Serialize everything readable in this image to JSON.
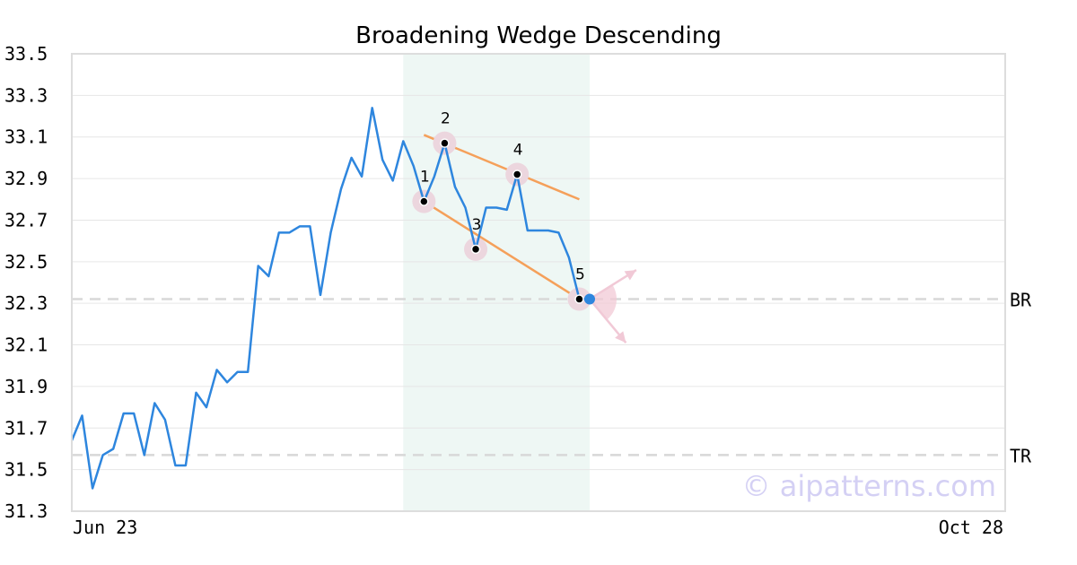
{
  "chart_data": {
    "type": "line",
    "title": "Broadening Wedge Descending",
    "xlabel": "",
    "ylabel": "",
    "ylim": [
      31.3,
      33.5
    ],
    "y_ticks": [
      "31.3",
      "31.5",
      "31.7",
      "31.9",
      "32.1",
      "32.3",
      "32.5",
      "32.7",
      "32.9",
      "33.1",
      "33.3",
      "33.5"
    ],
    "x_tick_labels": [
      "Jun 23",
      "Oct 28"
    ],
    "grid": "horizontal",
    "colors": {
      "price_line": "#2e86de",
      "trendline": "#f5a05a",
      "highlight_band": "#eef7f4",
      "marker_halo": "#ecd6de",
      "reference_line": "#d8d8d8",
      "projection": "#f1c9d6",
      "last_point": "#2e86de"
    },
    "series": [
      {
        "values": [
          31.64,
          31.76,
          31.41,
          31.57,
          31.6,
          31.77,
          31.77,
          31.57,
          31.82,
          31.74,
          31.52,
          31.52,
          31.87,
          31.8,
          31.98,
          31.92,
          31.97,
          31.97,
          32.48,
          32.43,
          32.64,
          32.64,
          32.67,
          32.67,
          32.34,
          32.64,
          32.85,
          33.0,
          32.91,
          33.24,
          32.99,
          32.89,
          33.08,
          32.96,
          32.79,
          32.91,
          33.07,
          32.86,
          32.76,
          32.56,
          32.76,
          32.76,
          32.75,
          32.92,
          32.65,
          32.65,
          32.65,
          32.64,
          32.52,
          32.32,
          32.32
        ]
      }
    ],
    "highlight_band": {
      "start_index": 32,
      "end_index": 50
    },
    "reference_lines": [
      {
        "label": "BR",
        "value": 32.32
      },
      {
        "label": "TR",
        "value": 31.57
      }
    ],
    "pattern_points": [
      {
        "label": "1",
        "index": 34,
        "value": 32.79
      },
      {
        "label": "2",
        "index": 36,
        "value": 33.07
      },
      {
        "label": "3",
        "index": 39,
        "value": 32.56
      },
      {
        "label": "4",
        "index": 43,
        "value": 32.92
      },
      {
        "label": "5",
        "index": 49,
        "value": 32.32
      }
    ],
    "trendlines": [
      {
        "name": "upper",
        "from": {
          "index": 34,
          "value": 33.11
        },
        "to": {
          "index": 49,
          "value": 32.8
        }
      },
      {
        "name": "lower",
        "from": {
          "index": 34,
          "value": 32.79
        },
        "to": {
          "index": 49,
          "value": 32.32
        }
      }
    ],
    "projection_arrows": [
      {
        "from": {
          "index": 50,
          "value": 32.32
        },
        "to": {
          "index": 54.5,
          "value": 32.46
        }
      },
      {
        "from": {
          "index": 50,
          "value": 32.32
        },
        "to": {
          "index": 53.5,
          "value": 32.11
        }
      }
    ],
    "watermark": "© aipatterns.com"
  }
}
